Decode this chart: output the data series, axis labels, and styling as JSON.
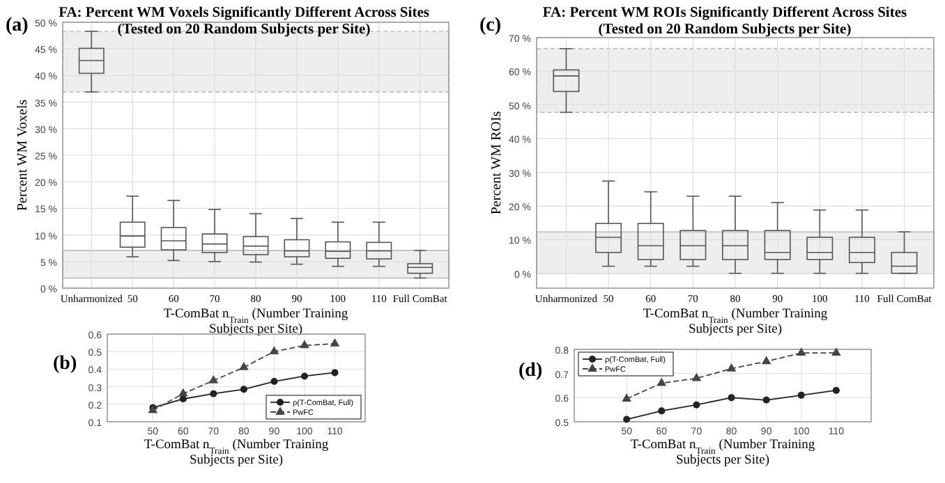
{
  "chart_data": [
    {
      "type": "box",
      "title": "FA: Percent WM Voxels Significantly Different Across Sites",
      "subtitle": "(Tested on 20 Random Subjects per Site)",
      "ylabel": "Percent WM Voxels",
      "xlabel": "T-ComBat n$_{Train}$ (Number Training Subjects per Site)",
      "annotations": [
        "(a)"
      ],
      "categories": [
        "Unharmonized",
        "50",
        "60",
        "70",
        "80",
        "90",
        "100",
        "110",
        "Full ComBat"
      ],
      "color": "#555555",
      "grid": true,
      "boxes": [
        {
          "low": 36.9,
          "q1": 40.4,
          "median": 42.8,
          "q3": 45.1,
          "high": 48.3
        },
        {
          "low": 5.9,
          "q1": 7.7,
          "median": 9.8,
          "q3": 12.4,
          "high": 17.3
        },
        {
          "low": 5.2,
          "q1": 7.2,
          "median": 8.9,
          "q3": 11.4,
          "high": 16.5
        },
        {
          "low": 5.0,
          "q1": 6.7,
          "median": 8.3,
          "q3": 10.2,
          "high": 14.8
        },
        {
          "low": 4.9,
          "q1": 6.3,
          "median": 7.9,
          "q3": 9.7,
          "high": 14.0
        },
        {
          "low": 4.5,
          "q1": 5.9,
          "median": 7.0,
          "q3": 9.1,
          "high": 13.1
        },
        {
          "low": 4.1,
          "q1": 5.6,
          "median": 6.9,
          "q3": 8.7,
          "high": 12.4
        },
        {
          "low": 4.1,
          "q1": 5.5,
          "median": 7.0,
          "q3": 8.6,
          "high": 12.4
        },
        {
          "low": 1.9,
          "q1": 2.8,
          "median": 3.9,
          "q3": 4.6,
          "high": 7.1
        }
      ],
      "bands": [
        {
          "axis": "y",
          "from": 36.9,
          "to": 48.3,
          "color": "#eeeeee"
        },
        {
          "axis": "y",
          "from": 1.9,
          "to": 7.1,
          "color": "#eeeeee"
        }
      ],
      "ylim": [
        0,
        50
      ],
      "yticks": [
        {
          "value": 0,
          "label": "0 %"
        },
        {
          "value": 5,
          "label": "5 %"
        },
        {
          "value": 10,
          "label": "10 %"
        },
        {
          "value": 15,
          "label": "15 %"
        },
        {
          "value": 20,
          "label": "20 %"
        },
        {
          "value": 25,
          "label": "25 %"
        },
        {
          "value": 30,
          "label": "30 %"
        },
        {
          "value": 35,
          "label": "35 %"
        },
        {
          "value": 40,
          "label": "40 %"
        },
        {
          "value": 45,
          "label": "45 %"
        },
        {
          "value": 50,
          "label": "50 %"
        }
      ]
    },
    {
      "type": "line",
      "xlabel": "T-ComBat n$_{Train}$ (Number Training Subjects per Site)",
      "annotations": [
        "(b)"
      ],
      "x": [
        50,
        60,
        70,
        80,
        90,
        100,
        110
      ],
      "grid": true,
      "legend": "bottom right",
      "series": [
        {
          "name": "ρ(T-ComBat, Full)",
          "color": "#222222",
          "marker": "circle",
          "line_style": "solid",
          "values": [
            0.18,
            0.23,
            0.26,
            0.285,
            0.33,
            0.36,
            0.38
          ]
        },
        {
          "name": "PwFC",
          "color": "#444444",
          "marker": "triangle",
          "line_style": "dashed",
          "values": [
            0.165,
            0.26,
            0.335,
            0.41,
            0.5,
            0.535,
            0.545
          ]
        }
      ],
      "xlim": [
        35,
        120
      ],
      "xticks": [
        50,
        60,
        70,
        80,
        90,
        100,
        110
      ],
      "ylim": [
        0.1,
        0.6
      ],
      "yticks": [
        0.1,
        0.2,
        0.3,
        0.4,
        0.5,
        0.6
      ]
    },
    {
      "type": "box",
      "title": "FA: Percent WM ROIs Significantly Different Across Sites",
      "subtitle": "(Tested on 20 Random Subjects per Site)",
      "ylabel": "Percent WM ROIs",
      "xlabel": "T-ComBat n$_{Train}$ (Number Training Subjects per Site)",
      "annotations": [
        "(c)"
      ],
      "categories": [
        "Unharmonized",
        "50",
        "60",
        "70",
        "80",
        "90",
        "100",
        "110",
        "Full ComBat"
      ],
      "color": "#555555",
      "grid": true,
      "boxes": [
        {
          "low": 47.8,
          "q1": 54.0,
          "median": 58.6,
          "q3": 60.4,
          "high": 66.7
        },
        {
          "low": 2.1,
          "q1": 6.2,
          "median": 10.7,
          "q3": 14.8,
          "high": 27.4
        },
        {
          "low": 2.1,
          "q1": 4.1,
          "median": 8.2,
          "q3": 14.8,
          "high": 24.2
        },
        {
          "low": 2.1,
          "q1": 4.1,
          "median": 8.2,
          "q3": 12.7,
          "high": 22.9
        },
        {
          "low": 0,
          "q1": 4.1,
          "median": 8.2,
          "q3": 12.7,
          "high": 22.9
        },
        {
          "low": 0,
          "q1": 4.1,
          "median": 6.2,
          "q3": 12.7,
          "high": 21.0
        },
        {
          "low": 0,
          "q1": 4.1,
          "median": 6.2,
          "q3": 10.7,
          "high": 18.8
        },
        {
          "low": 0,
          "q1": 3.2,
          "median": 6.2,
          "q3": 10.7,
          "high": 18.8
        },
        {
          "low": 0,
          "q1": 0,
          "median": 2.1,
          "q3": 6.2,
          "high": 12.3
        }
      ],
      "bands": [
        {
          "axis": "y",
          "from": 47.8,
          "to": 66.7,
          "color": "#eeeeee"
        },
        {
          "axis": "y",
          "from": 0,
          "to": 12.3,
          "color": "#eeeeee"
        }
      ],
      "ylim": [
        -4.4,
        70
      ],
      "yticks": [
        {
          "value": 0,
          "label": "0 %"
        },
        {
          "value": 10,
          "label": "10 %"
        },
        {
          "value": 20,
          "label": "20 %"
        },
        {
          "value": 30,
          "label": "30 %"
        },
        {
          "value": 40,
          "label": "40 %"
        },
        {
          "value": 50,
          "label": "50 %"
        },
        {
          "value": 60,
          "label": "60 %"
        },
        {
          "value": 70,
          "label": "70 %"
        }
      ]
    },
    {
      "type": "line",
      "xlabel": "T-ComBat n$_{Train}$ (Number Training Subjects per Site)",
      "annotations": [
        "(d)"
      ],
      "x": [
        50,
        60,
        70,
        80,
        90,
        100,
        110
      ],
      "grid": true,
      "legend": "top left",
      "series": [
        {
          "name": "ρ(T-ComBat, Full)",
          "color": "#222222",
          "marker": "circle",
          "line_style": "solid",
          "values": [
            0.51,
            0.545,
            0.57,
            0.6,
            0.59,
            0.61,
            0.63
          ]
        },
        {
          "name": "PwFC",
          "color": "#444444",
          "marker": "triangle",
          "line_style": "dashed",
          "values": [
            0.595,
            0.66,
            0.68,
            0.72,
            0.75,
            0.785,
            0.785
          ]
        }
      ],
      "xlim": [
        35,
        120
      ],
      "xticks": [
        50,
        60,
        70,
        80,
        90,
        100,
        110
      ],
      "ylim": [
        0.5,
        0.8
      ],
      "yticks": [
        0.5,
        0.6,
        0.7,
        0.8
      ]
    }
  ]
}
